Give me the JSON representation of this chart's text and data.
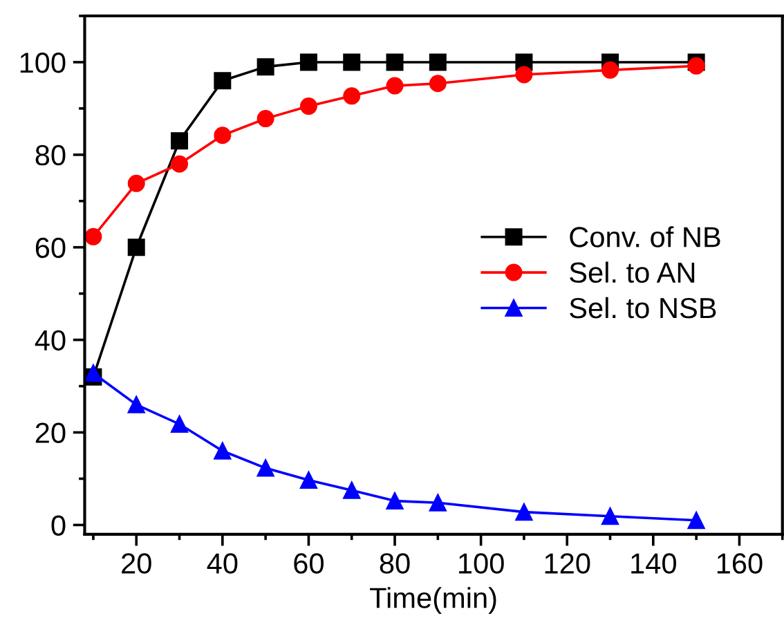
{
  "chart_data": {
    "type": "line",
    "xlabel": "Time(min)",
    "x": [
      10,
      20,
      30,
      40,
      50,
      60,
      70,
      80,
      90,
      110,
      130,
      150
    ],
    "series": [
      {
        "name": "Conv. of NB",
        "color": "#000000",
        "marker": "square",
        "values": [
          32,
          60,
          83,
          96,
          99,
          100,
          100,
          100,
          100,
          100,
          100,
          100
        ]
      },
      {
        "name": "Sel. to AN",
        "color": "#ff0000",
        "marker": "circle",
        "values": [
          62.3,
          73.8,
          78,
          84.2,
          87.8,
          90.5,
          92.7,
          94.9,
          95.4,
          97.3,
          98.3,
          99.2
        ]
      },
      {
        "name": "Sel. to NSB",
        "color": "#0000ff",
        "marker": "triangle",
        "values": [
          32.8,
          26,
          21.8,
          16,
          12.3,
          9.7,
          7.5,
          5.2,
          4.8,
          2.8,
          1.9,
          1.0
        ]
      }
    ],
    "xlim": [
      8,
      170
    ],
    "ylim": [
      -2,
      110
    ],
    "xticks": [
      20,
      40,
      60,
      80,
      100,
      120,
      140,
      160
    ],
    "yticks": [
      0,
      20,
      40,
      60,
      80,
      100
    ],
    "grid": false,
    "legend": "right",
    "line_style": "solid"
  }
}
